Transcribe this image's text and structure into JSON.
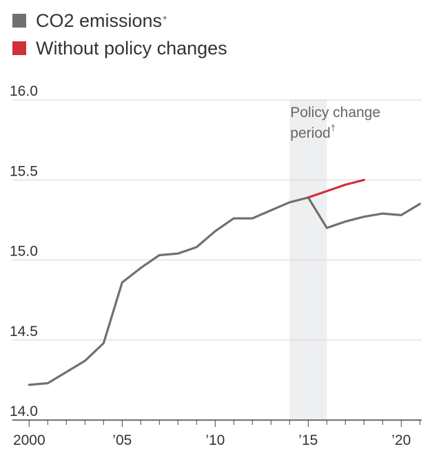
{
  "chart_data": {
    "type": "line",
    "title": "",
    "xlabel": "",
    "ylabel": "",
    "xlim": [
      1999.1,
      2021.1
    ],
    "ylim": [
      14.0,
      16.0
    ],
    "yticks": [
      "16.0",
      "15.5",
      "15.0",
      "14.5",
      "14.0"
    ],
    "ytick_values": [
      16.0,
      15.5,
      15.0,
      14.5,
      14.0
    ],
    "xticks": [
      "2000",
      "’05",
      "’10",
      "’15",
      "’20"
    ],
    "xtick_values": [
      2000,
      2005,
      2010,
      2015,
      2020
    ],
    "grid": true,
    "legend_position": "top-left",
    "legend": [
      {
        "label": "CO2 emissions",
        "note": "*",
        "color": "#707070"
      },
      {
        "label": "Without policy changes",
        "note": "",
        "color": "#d0303a"
      }
    ],
    "shaded_region": {
      "x_start": 2014,
      "x_end": 2016,
      "label_line1": "Policy change",
      "label_line2": "period",
      "label_note": "†"
    },
    "series": [
      {
        "name": "CO2 emissions",
        "color": "#707070",
        "x": [
          2000,
          2001,
          2002,
          2003,
          2004,
          2005,
          2006,
          2007,
          2008,
          2009,
          2010,
          2011,
          2012,
          2013,
          2014,
          2015,
          2016,
          2017,
          2018,
          2019,
          2020,
          2021
        ],
        "values": [
          14.22,
          14.23,
          14.3,
          14.37,
          14.48,
          14.86,
          14.95,
          15.03,
          15.04,
          15.08,
          15.18,
          15.26,
          15.26,
          15.31,
          15.36,
          15.39,
          15.2,
          15.24,
          15.27,
          15.29,
          15.28,
          15.35
        ]
      },
      {
        "name": "Without policy changes",
        "color": "#d0303a",
        "x": [
          2015,
          2016,
          2017,
          2018
        ],
        "values": [
          15.39,
          15.43,
          15.47,
          15.5
        ]
      }
    ]
  }
}
